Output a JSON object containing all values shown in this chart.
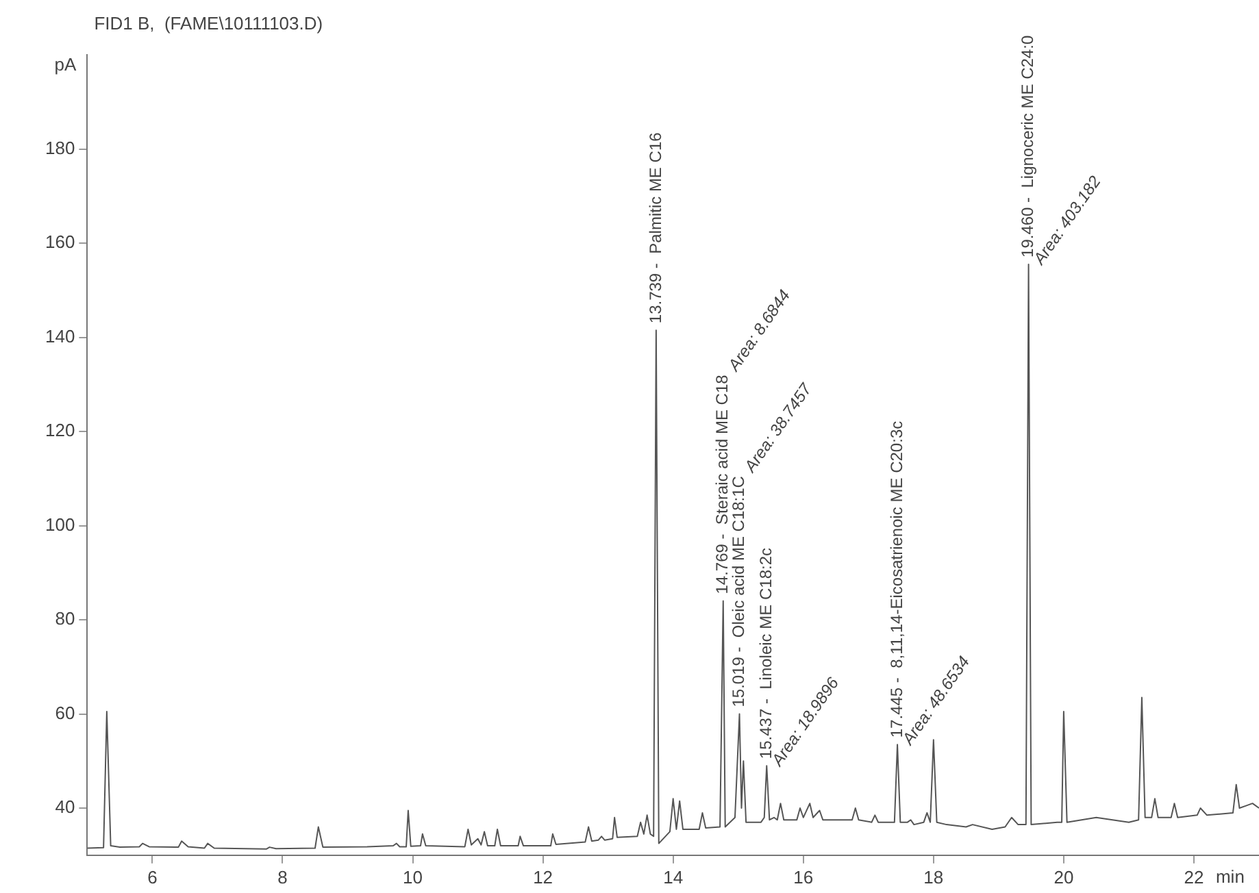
{
  "chart_data": {
    "type": "line",
    "title": "FID1 B,  (FAME\\10111103.D)",
    "xlabel": "min",
    "ylabel": "pA",
    "xlim": [
      5,
      23
    ],
    "xticks": [
      6,
      8,
      10,
      12,
      14,
      16,
      18,
      20,
      22
    ],
    "ylim": [
      30,
      200
    ],
    "yticks": [
      40,
      60,
      80,
      100,
      120,
      140,
      160,
      180
    ],
    "grid": false,
    "legend": false,
    "marker": "none",
    "line_style": "solid",
    "series": [
      {
        "color": "#555555",
        "x": [
          5.0,
          5.25,
          5.3,
          5.36,
          5.5,
          5.8,
          5.85,
          5.95,
          6.4,
          6.45,
          6.55,
          6.8,
          6.85,
          6.95,
          7.75,
          7.8,
          7.9,
          8.5,
          8.55,
          8.62,
          9.3,
          9.7,
          9.75,
          9.8,
          9.9,
          9.93,
          9.97,
          10.12,
          10.15,
          10.2,
          10.8,
          10.85,
          10.9,
          11.0,
          11.05,
          11.1,
          11.15,
          11.26,
          11.3,
          11.35,
          11.62,
          11.65,
          11.7,
          12.12,
          12.15,
          12.2,
          12.65,
          12.7,
          12.75,
          12.85,
          12.9,
          12.95,
          13.07,
          13.1,
          13.14,
          13.45,
          13.5,
          13.55,
          13.6,
          13.65,
          13.7,
          13.739,
          13.78,
          13.95,
          14.0,
          14.05,
          14.1,
          14.15,
          14.4,
          14.45,
          14.5,
          14.72,
          14.769,
          14.8,
          14.95,
          15.019,
          15.05,
          15.08,
          15.12,
          15.35,
          15.4,
          15.437,
          15.48,
          15.55,
          15.6,
          15.65,
          15.7,
          15.9,
          15.95,
          16.0,
          16.1,
          16.15,
          16.25,
          16.3,
          16.75,
          16.8,
          16.85,
          17.05,
          17.1,
          17.15,
          17.4,
          17.445,
          17.49,
          17.6,
          17.65,
          17.7,
          17.85,
          17.9,
          17.95,
          18.0,
          18.05,
          18.2,
          18.5,
          18.6,
          18.9,
          19.1,
          19.2,
          19.3,
          19.42,
          19.46,
          19.5,
          19.9,
          19.97,
          20.0,
          20.05,
          20.5,
          21.0,
          21.15,
          21.2,
          21.25,
          21.35,
          21.4,
          21.45,
          21.65,
          21.7,
          21.75,
          22.05,
          22.1,
          22.2,
          22.6,
          22.65,
          22.7,
          22.8,
          22.9,
          23.0
        ],
        "values": [
          31.5,
          31.6,
          60.5,
          32,
          31.7,
          31.8,
          32.5,
          31.8,
          31.7,
          33,
          31.8,
          31.5,
          32.5,
          31.5,
          31.3,
          31.7,
          31.4,
          31.5,
          36,
          31.7,
          31.8,
          32,
          32.5,
          31.8,
          31.8,
          39.5,
          31.9,
          32,
          34.5,
          32,
          31.8,
          35.5,
          32.2,
          33.5,
          32.2,
          35,
          32,
          32,
          35.5,
          32,
          32,
          34,
          32,
          32,
          34.5,
          32.3,
          32.8,
          36,
          33,
          33.2,
          34,
          33.2,
          33.5,
          38,
          33.8,
          34,
          37,
          34.5,
          38.5,
          34.5,
          34,
          141.5,
          32.5,
          35,
          42,
          35.5,
          41.5,
          35.5,
          35.5,
          39,
          35.8,
          36,
          84,
          36,
          38,
          60,
          40,
          50,
          37,
          37,
          38,
          49,
          37.5,
          38,
          37.5,
          41,
          37.5,
          37.5,
          40,
          38,
          41,
          38,
          39.5,
          37.5,
          37.5,
          40,
          37.5,
          37,
          38.5,
          37,
          37,
          53.5,
          37,
          37,
          37.5,
          36.5,
          37,
          39,
          37,
          54.5,
          37,
          36.5,
          36,
          36.5,
          35.5,
          36,
          38,
          36.5,
          36.5,
          155.5,
          36.5,
          37,
          37,
          60.5,
          37,
          38,
          37,
          37.5,
          63.5,
          38,
          38,
          42,
          38,
          38,
          41,
          38,
          38.5,
          40,
          38.5,
          39,
          45,
          40,
          40.5,
          41,
          40
        ]
      }
    ],
    "annotations": [
      {
        "text": "13.739 -  Palmitic ME C16",
        "x": 13.739,
        "y": 141.5
      },
      {
        "text": "14.769 -  Steraic acid ME C18",
        "x": 14.769,
        "y": 84
      },
      "Area: 8.6844",
      {
        "text": "15.019 -  Oleic acid ME C18:1C",
        "x": 15.019,
        "y": 60
      },
      "Area: 38.7457",
      {
        "text": "15.437 -  Linoleic ME C18:2c",
        "x": 15.437,
        "y": 49
      },
      "Area: 18.9896",
      {
        "text": "17.445 -  8,11,14-Eicosatrienoic ME C20:3c",
        "x": 17.445,
        "y": 53.5
      },
      "Area: 48.6534",
      {
        "text": "19.460 -  Lignoceric ME C24:0",
        "x": 19.46,
        "y": 155.5
      },
      "Area: 403.182"
    ]
  }
}
